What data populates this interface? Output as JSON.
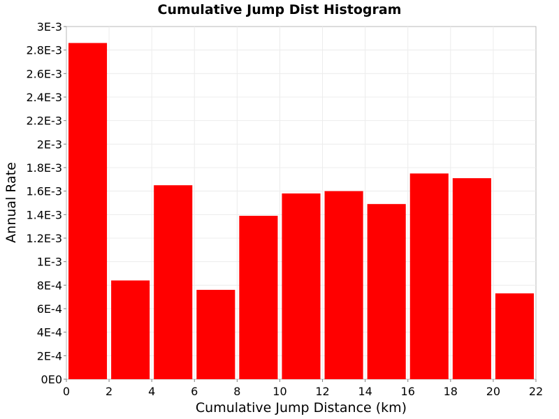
{
  "chart_data": {
    "type": "bar",
    "title": "Cumulative Jump Dist Histogram",
    "xlabel": "Cumulative Jump Distance (km)",
    "ylabel": "Annual Rate",
    "xlim": [
      0,
      22
    ],
    "ylim": [
      0,
      0.003
    ],
    "bin_width": 2,
    "x": [
      1,
      3,
      5,
      7,
      9,
      11,
      13,
      15,
      17,
      19,
      21
    ],
    "values": [
      0.00286,
      0.00084,
      0.00165,
      0.00076,
      0.00139,
      0.00158,
      0.0016,
      0.00149,
      0.00175,
      0.00171,
      0.00073
    ],
    "bar_color": "#ff0000",
    "grid": true,
    "x_ticks": [
      {
        "value": 0,
        "label": "0"
      },
      {
        "value": 2,
        "label": "2"
      },
      {
        "value": 4,
        "label": "4"
      },
      {
        "value": 6,
        "label": "6"
      },
      {
        "value": 8,
        "label": "8"
      },
      {
        "value": 10,
        "label": "10"
      },
      {
        "value": 12,
        "label": "12"
      },
      {
        "value": 14,
        "label": "14"
      },
      {
        "value": 16,
        "label": "16"
      },
      {
        "value": 18,
        "label": "18"
      },
      {
        "value": 20,
        "label": "20"
      },
      {
        "value": 22,
        "label": "22"
      }
    ],
    "y_ticks": [
      {
        "value": 0,
        "label": "0E0"
      },
      {
        "value": 0.0002,
        "label": "2E-4"
      },
      {
        "value": 0.0004,
        "label": "4E-4"
      },
      {
        "value": 0.0006,
        "label": "6E-4"
      },
      {
        "value": 0.0008,
        "label": "8E-4"
      },
      {
        "value": 0.001,
        "label": "1E-3"
      },
      {
        "value": 0.0012,
        "label": "1.2E-3"
      },
      {
        "value": 0.0014,
        "label": "1.4E-3"
      },
      {
        "value": 0.0016,
        "label": "1.6E-3"
      },
      {
        "value": 0.0018,
        "label": "1.8E-3"
      },
      {
        "value": 0.002,
        "label": "2E-3"
      },
      {
        "value": 0.0022,
        "label": "2.2E-3"
      },
      {
        "value": 0.0024,
        "label": "2.4E-3"
      },
      {
        "value": 0.0026,
        "label": "2.6E-3"
      },
      {
        "value": 0.0028,
        "label": "2.8E-3"
      },
      {
        "value": 0.003,
        "label": "3E-3"
      }
    ]
  }
}
